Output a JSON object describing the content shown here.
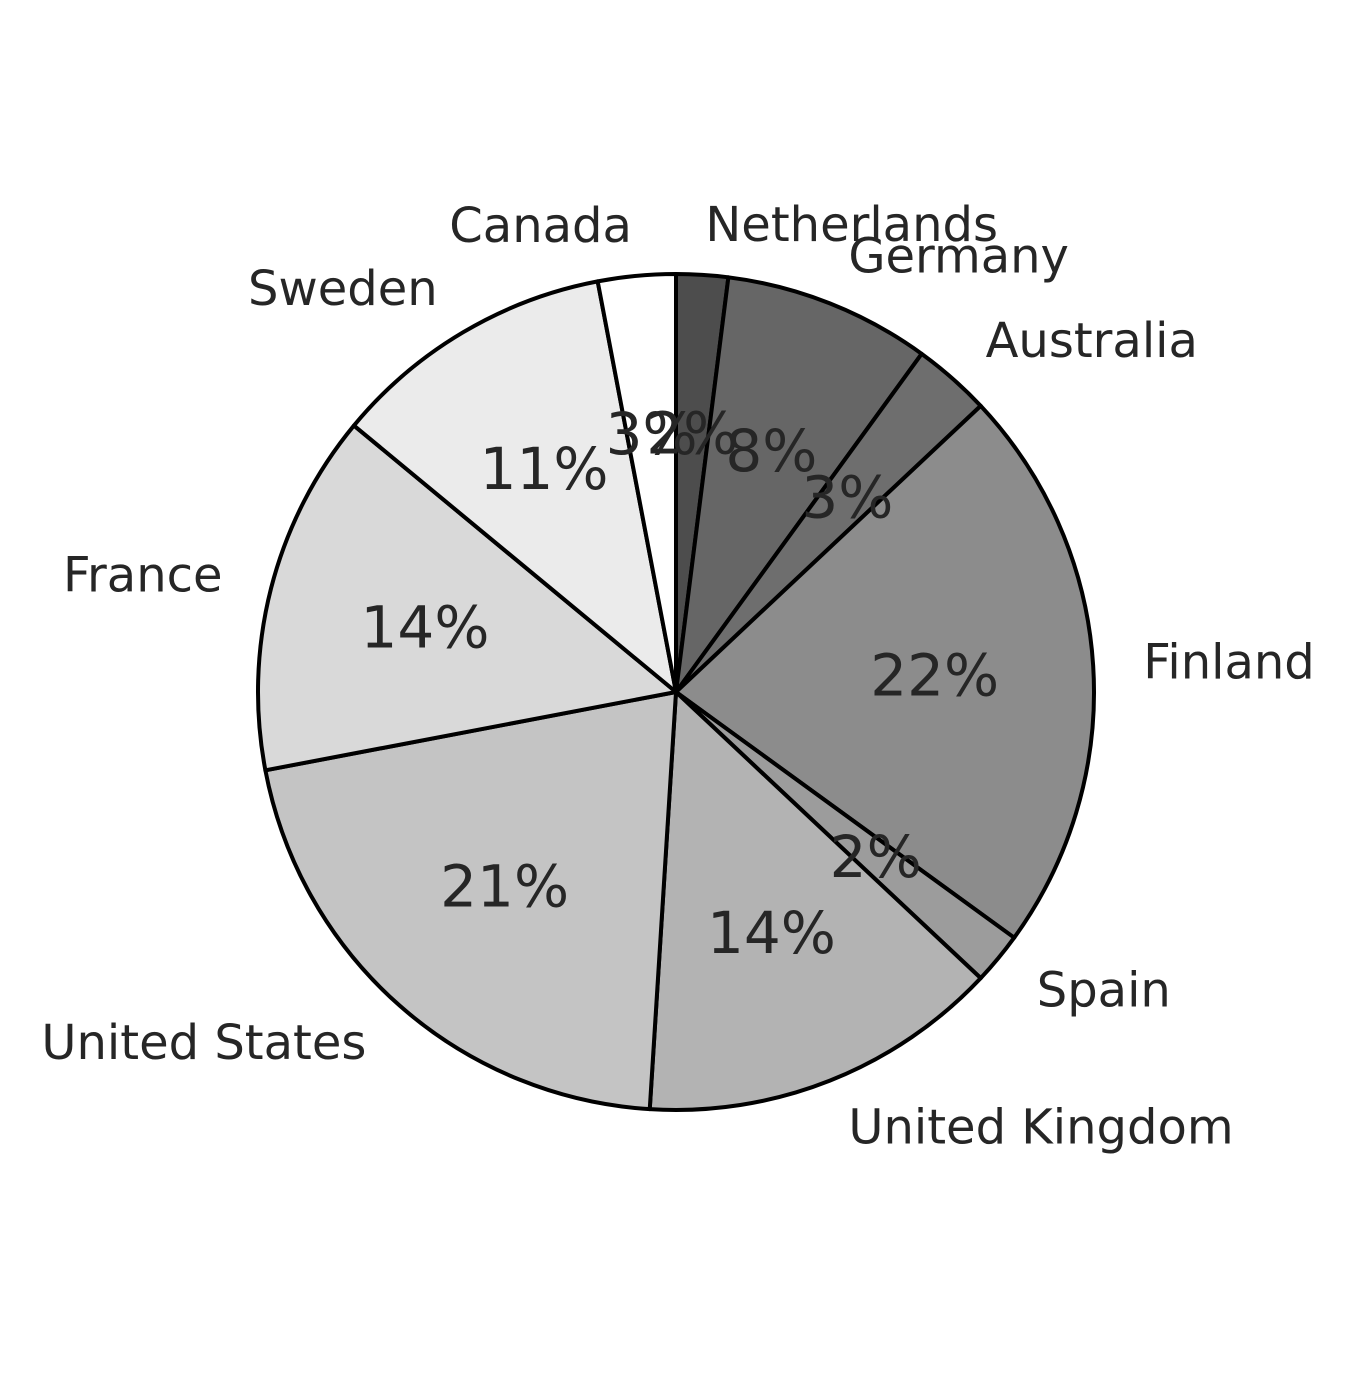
{
  "chart_data": {
    "type": "pie",
    "start": "12 o'clock",
    "direction": "clockwise",
    "slices": [
      {
        "label": "Netherlands",
        "value": 2,
        "pct_label": "2%",
        "color": "#4d4d4d"
      },
      {
        "label": "Germany",
        "value": 8,
        "pct_label": "8%",
        "color": "#666666"
      },
      {
        "label": "Australia",
        "value": 3,
        "pct_label": "3%",
        "color": "#6e6e6e"
      },
      {
        "label": "Finland",
        "value": 22,
        "pct_label": "22%",
        "color": "#8c8c8c"
      },
      {
        "label": "Spain",
        "value": 2,
        "pct_label": "2%",
        "color": "#9c9c9c"
      },
      {
        "label": "United Kingdom",
        "value": 14,
        "pct_label": "14%",
        "color": "#b3b3b3"
      },
      {
        "label": "United States",
        "value": 21,
        "pct_label": "21%",
        "color": "#c4c4c4"
      },
      {
        "label": "France",
        "value": 14,
        "pct_label": "14%",
        "color": "#d9d9d9"
      },
      {
        "label": "Sweden",
        "value": 11,
        "pct_label": "11%",
        "color": "#ebebeb"
      },
      {
        "label": "Canada",
        "value": 3,
        "pct_label": "3%",
        "color": "#ffffff"
      }
    ]
  }
}
